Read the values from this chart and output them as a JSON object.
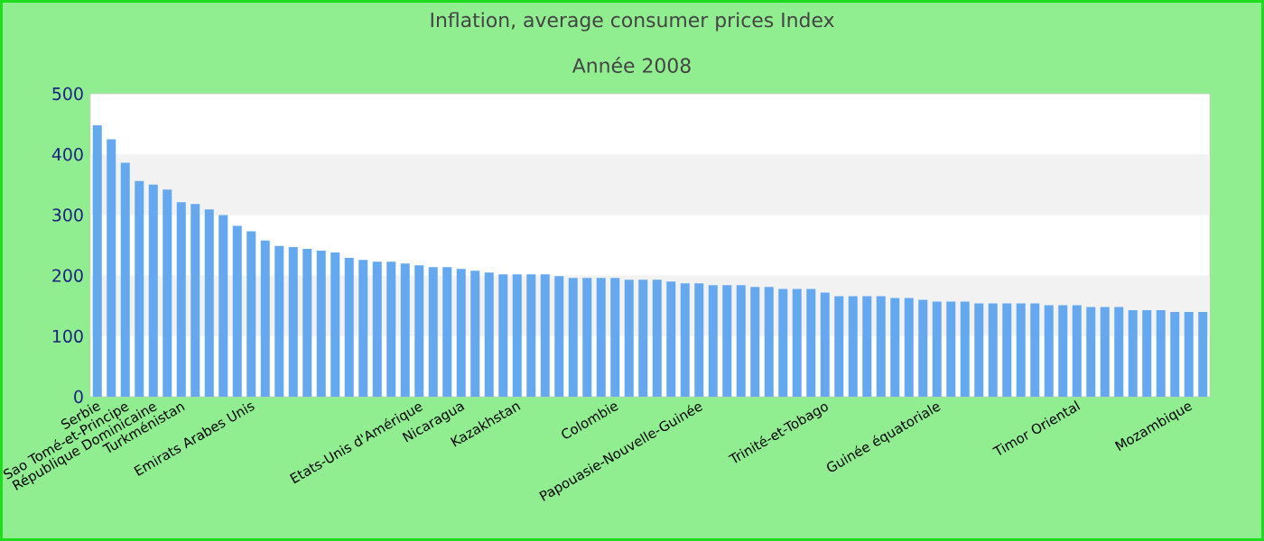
{
  "chart_data": {
    "type": "bar",
    "title": "Inflation, average consumer prices  Index",
    "subtitle": "Année 2008",
    "categories": [
      "Serbie",
      null,
      "Sao Tomé-et-Principe",
      null,
      "République Dominicaine",
      null,
      "Turkménistan",
      null,
      null,
      null,
      null,
      "Emirats Arabes Unis",
      null,
      null,
      null,
      null,
      null,
      null,
      null,
      null,
      null,
      null,
      null,
      "Etats-Unis d'Amérique",
      null,
      null,
      "Nicaragua",
      null,
      null,
      null,
      "Kazakhstan",
      null,
      null,
      null,
      null,
      null,
      null,
      "Colombie",
      null,
      null,
      null,
      null,
      null,
      "Papouasie-Nouvelle-Guinée",
      null,
      null,
      null,
      null,
      null,
      null,
      null,
      null,
      "Trinité-et-Tobago",
      null,
      null,
      null,
      null,
      null,
      null,
      null,
      "Guinée équatoriale",
      null,
      null,
      null,
      null,
      null,
      null,
      null,
      null,
      null,
      "Timor Oriental",
      null,
      null,
      null,
      null,
      null,
      null,
      null,
      "Mozambique",
      null
    ],
    "values": [
      448,
      425,
      386,
      356,
      350,
      342,
      321,
      318,
      309,
      300,
      282,
      273,
      258,
      249,
      247,
      244,
      241,
      238,
      229,
      226,
      223,
      223,
      220,
      217,
      214,
      214,
      211,
      208,
      205,
      202,
      202,
      202,
      202,
      199,
      196,
      196,
      196,
      196,
      193,
      193,
      193,
      190,
      187,
      187,
      184,
      184,
      184,
      181,
      181,
      178,
      178,
      178,
      172,
      166,
      166,
      166,
      166,
      163,
      163,
      160,
      157,
      157,
      157,
      154,
      154,
      154,
      154,
      154,
      151,
      151,
      151,
      148,
      148,
      148,
      143,
      143,
      143,
      140,
      140,
      140
    ],
    "color": "#64a8f0",
    "ylim": [
      0,
      500
    ],
    "yticks": [
      0,
      100,
      200,
      300,
      400,
      500
    ],
    "bands": [
      {
        "axis": "y",
        "from": 100,
        "to": 200,
        "color": "#f2f2f2"
      },
      {
        "axis": "y",
        "from": 300,
        "to": 400,
        "color": "#f2f2f2"
      }
    ]
  }
}
